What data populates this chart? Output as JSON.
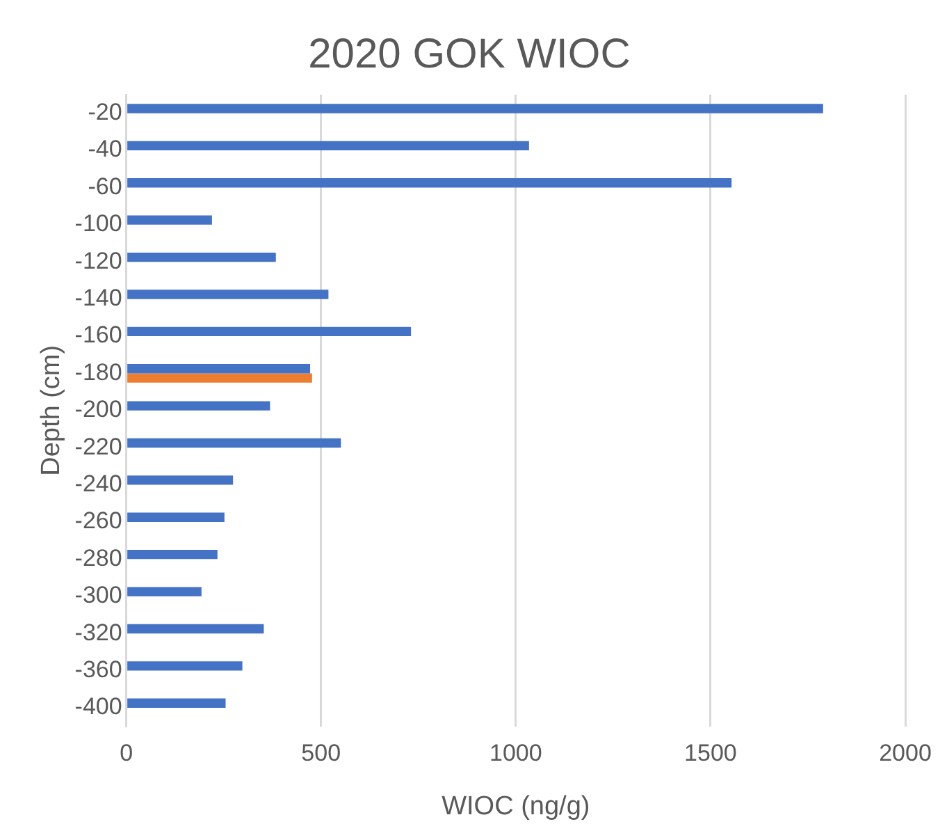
{
  "chart_data": {
    "type": "bar",
    "orientation": "horizontal",
    "title": "2020 GOK WIOC",
    "xlabel": "WIOC (ng/g)",
    "ylabel": "Depth (cm)",
    "categories": [
      "-20",
      "-40",
      "-60",
      "-100",
      "-120",
      "-140",
      "-160",
      "-180",
      "-200",
      "-220",
      "-240",
      "-260",
      "-280",
      "-300",
      "-320",
      "-360",
      "-400"
    ],
    "series": [
      {
        "color": "#4472c4",
        "values": [
          1789,
          1034,
          1554,
          220,
          384,
          519,
          731,
          472,
          369,
          551,
          274,
          252,
          234,
          193,
          353,
          298,
          255
        ]
      },
      {
        "color": "#ed7d31",
        "values": [
          null,
          null,
          null,
          null,
          null,
          null,
          null,
          477,
          null,
          null,
          null,
          null,
          null,
          null,
          null,
          null,
          null
        ]
      }
    ],
    "xlim": [
      0,
      2000
    ],
    "xticks": [
      0,
      500,
      1000,
      1500,
      2000
    ],
    "grid": "x",
    "legend": false
  }
}
